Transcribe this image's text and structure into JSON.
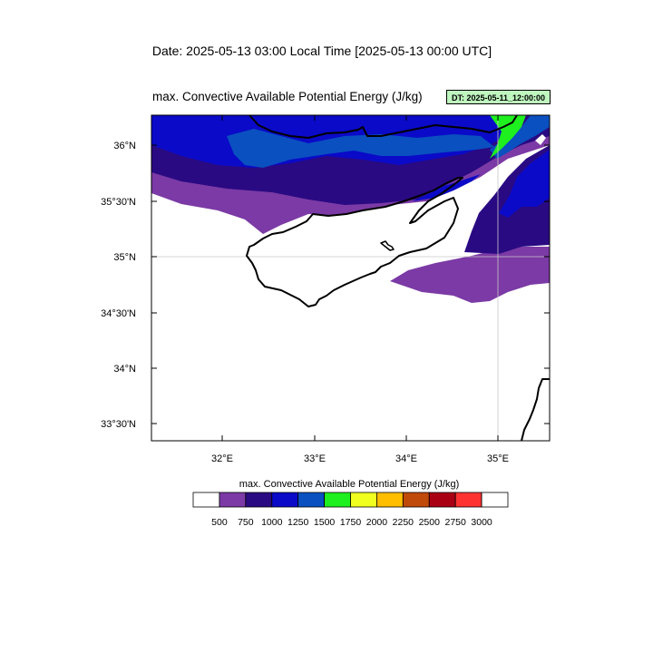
{
  "header": {
    "date_title": "Date: 2025-05-13  03:00 Local Time [2025-05-13  00:00 UTC]",
    "plot_title": "max. Convective Available Potential Energy    (J/kg)",
    "dt_badge": "DT: 2025-05-11_12:00:00"
  },
  "map": {
    "lat_labels": [
      "36°N",
      "35°30'N",
      "35°N",
      "34°30'N",
      "34°N",
      "33°30'N"
    ],
    "lon_labels": [
      "32°E",
      "33°E",
      "34°E",
      "35°E"
    ],
    "gridline_color": "#c8c8c8"
  },
  "colorbar": {
    "title": "max. Convective Available Potential Energy  (J/kg)",
    "levels": [
      "500",
      "750",
      "1000",
      "1250",
      "1500",
      "1750",
      "2000",
      "2250",
      "2500",
      "2750",
      "3000"
    ],
    "colors": [
      "#ffffff",
      "#7b3aa5",
      "#2a0a82",
      "#0a0ac8",
      "#0a50c0",
      "#1eef1e",
      "#f0ff1e",
      "#ffbe00",
      "#c04a0a",
      "#aa0014",
      "#ff3232",
      "#ffffff"
    ]
  }
}
